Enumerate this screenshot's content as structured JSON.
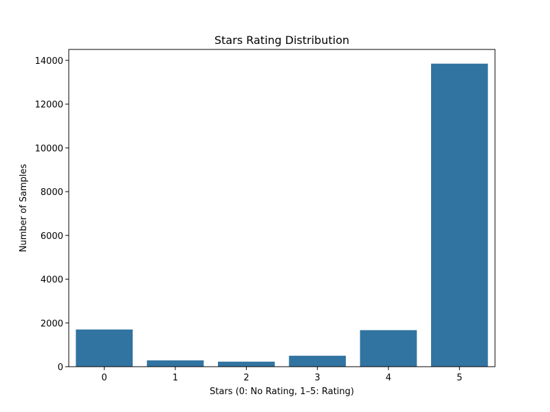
{
  "chart_data": {
    "type": "bar",
    "title": "Stars Rating Distribution",
    "xlabel": "Stars (0: No Rating, 1–5: Rating)",
    "ylabel": "Number of Samples",
    "categories": [
      "0",
      "1",
      "2",
      "3",
      "4",
      "5"
    ],
    "values": [
      1700,
      290,
      230,
      500,
      1670,
      13850
    ],
    "ylim": [
      0,
      14500
    ],
    "yticks": [
      0,
      2000,
      4000,
      6000,
      8000,
      10000,
      12000,
      14000
    ],
    "grid": false,
    "legend": "none",
    "colors": {
      "bar": "#3274a1"
    }
  }
}
